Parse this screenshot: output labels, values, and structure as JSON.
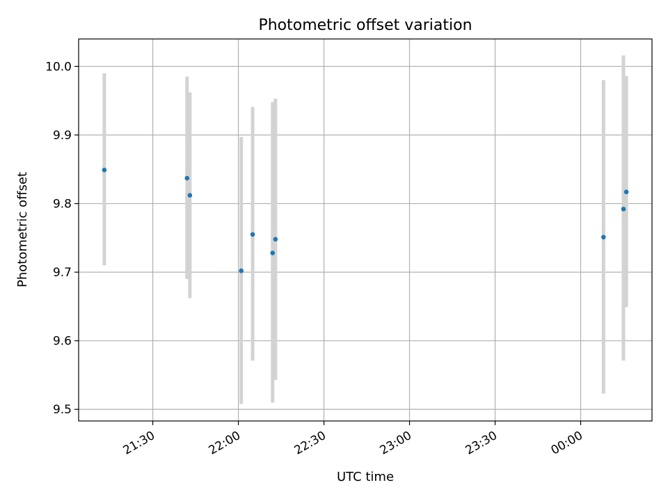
{
  "chart_data": {
    "type": "scatter",
    "title": "Photometric offset variation",
    "xlabel": "UTC time",
    "ylabel": "Photometric offset",
    "x_format": "HH:MM",
    "xlim": [
      "21:04",
      "00:25"
    ],
    "ylim": [
      9.483,
      10.04
    ],
    "grid": true,
    "xticks": [
      "21:30",
      "22:00",
      "22:30",
      "23:00",
      "23:30",
      "00:00"
    ],
    "yticks": [
      9.5,
      9.6,
      9.7,
      9.8,
      9.9,
      10.0
    ],
    "ytick_labels": [
      "9.5",
      "9.6",
      "9.7",
      "9.8",
      "9.9",
      "10.0"
    ],
    "marker_color": "#1f77b4",
    "errorbar_color": "#d3d3d3",
    "points": [
      {
        "time": "21:13",
        "y": 9.849,
        "yerr_low": 9.71,
        "yerr_high": 9.99
      },
      {
        "time": "21:42",
        "y": 9.837,
        "yerr_low": 9.69,
        "yerr_high": 9.985
      },
      {
        "time": "21:43",
        "y": 9.812,
        "yerr_low": 9.662,
        "yerr_high": 9.962
      },
      {
        "time": "22:01",
        "y": 9.702,
        "yerr_low": 9.508,
        "yerr_high": 9.897
      },
      {
        "time": "22:05",
        "y": 9.755,
        "yerr_low": 9.571,
        "yerr_high": 9.941
      },
      {
        "time": "22:12",
        "y": 9.728,
        "yerr_low": 9.51,
        "yerr_high": 9.948
      },
      {
        "time": "22:13",
        "y": 9.748,
        "yerr_low": 9.543,
        "yerr_high": 9.953
      },
      {
        "time": "00:08",
        "y": 9.751,
        "yerr_low": 9.523,
        "yerr_high": 9.98
      },
      {
        "time": "00:15",
        "y": 9.792,
        "yerr_low": 9.571,
        "yerr_high": 10.016
      },
      {
        "time": "00:16",
        "y": 9.817,
        "yerr_low": 9.649,
        "yerr_high": 9.986
      }
    ]
  }
}
